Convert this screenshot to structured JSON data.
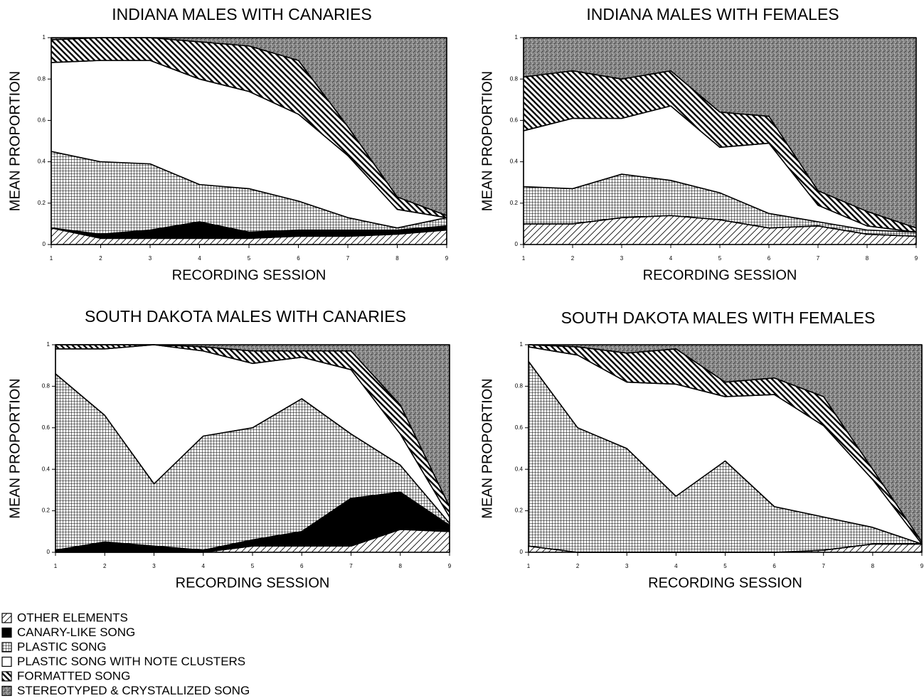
{
  "chart_data": [
    {
      "type": "stacked-area",
      "title": "INDIANA MALES WITH CANARIES",
      "xlabel": "RECORDING SESSION",
      "ylabel": "MEAN PROPORTION",
      "x": [
        1,
        2,
        3,
        4,
        5,
        6,
        7,
        8,
        9
      ],
      "xlim": [
        1,
        9
      ],
      "xticks": [
        1,
        2,
        3,
        4,
        5,
        6,
        7,
        8,
        9
      ],
      "ylim": [
        0,
        1
      ],
      "yticks": [
        0,
        0.2,
        0.4,
        0.6,
        0.8,
        1
      ],
      "series": [
        {
          "values": [
            0.08,
            0.03,
            0.03,
            0.03,
            0.03,
            0.04,
            0.04,
            0.05,
            0.07
          ]
        },
        {
          "values": [
            0,
            0.02,
            0.04,
            0.08,
            0.03,
            0.03,
            0.03,
            0.02,
            0.02
          ]
        },
        {
          "values": [
            0.37,
            0.35,
            0.32,
            0.18,
            0.21,
            0.14,
            0.06,
            0.01,
            0.04
          ]
        },
        {
          "values": [
            0.43,
            0.49,
            0.5,
            0.51,
            0.47,
            0.42,
            0.3,
            0.09,
            0
          ]
        },
        {
          "values": [
            0.11,
            0.11,
            0.11,
            0.18,
            0.22,
            0.26,
            0.14,
            0.06,
            0.01
          ]
        },
        {
          "values": [
            0.01,
            0,
            0,
            0.02,
            0.04,
            0.11,
            0.43,
            0.77,
            0.86
          ]
        }
      ]
    },
    {
      "type": "stacked-area",
      "title": "INDIANA MALES WITH FEMALES",
      "xlabel": "RECORDING SESSION",
      "ylabel": "MEAN PROPORTION",
      "x": [
        1,
        2,
        3,
        4,
        5,
        6,
        7,
        8,
        9
      ],
      "xlim": [
        1,
        9
      ],
      "xticks": [
        1,
        2,
        3,
        4,
        5,
        6,
        7,
        8,
        9
      ],
      "ylim": [
        0,
        1
      ],
      "yticks": [
        0,
        0.2,
        0.4,
        0.6,
        0.8,
        1
      ],
      "series": [
        {
          "values": [
            0.1,
            0.1,
            0.13,
            0.14,
            0.12,
            0.08,
            0.09,
            0.05,
            0.04
          ]
        },
        {
          "values": [
            0,
            0,
            0,
            0,
            0,
            0,
            0,
            0,
            0
          ]
        },
        {
          "values": [
            0.18,
            0.17,
            0.21,
            0.17,
            0.13,
            0.07,
            0.02,
            0.02,
            0.02
          ]
        },
        {
          "values": [
            0.27,
            0.34,
            0.27,
            0.36,
            0.22,
            0.34,
            0.08,
            0.02,
            0
          ]
        },
        {
          "values": [
            0.26,
            0.23,
            0.19,
            0.17,
            0.17,
            0.13,
            0.07,
            0.07,
            0.02
          ]
        },
        {
          "values": [
            0.19,
            0.16,
            0.2,
            0.16,
            0.36,
            0.38,
            0.74,
            0.84,
            0.92
          ]
        }
      ]
    },
    {
      "type": "stacked-area",
      "title": "SOUTH DAKOTA MALES WITH CANARIES",
      "xlabel": "RECORDING SESSION",
      "ylabel": "MEAN PROPORTION",
      "x": [
        1,
        2,
        3,
        4,
        5,
        6,
        7,
        8,
        9
      ],
      "xlim": [
        1,
        9
      ],
      "xticks": [
        1,
        2,
        3,
        4,
        5,
        6,
        7,
        8,
        9
      ],
      "ylim": [
        0,
        1
      ],
      "yticks": [
        0,
        0.2,
        0.4,
        0.6,
        0.8,
        1
      ],
      "series": [
        {
          "values": [
            0,
            0,
            0,
            0,
            0.03,
            0.03,
            0.03,
            0.11,
            0.1
          ]
        },
        {
          "values": [
            0.01,
            0.05,
            0.03,
            0.01,
            0.03,
            0.07,
            0.23,
            0.18,
            0.03
          ]
        },
        {
          "values": [
            0.85,
            0.61,
            0.3,
            0.55,
            0.54,
            0.64,
            0.31,
            0.13,
            0.01
          ]
        },
        {
          "values": [
            0.12,
            0.32,
            0.67,
            0.41,
            0.31,
            0.2,
            0.31,
            0.15,
            0.03
          ]
        },
        {
          "values": [
            0.02,
            0.02,
            0,
            0.02,
            0.06,
            0.03,
            0.09,
            0.14,
            0.05
          ]
        },
        {
          "values": [
            0,
            0,
            0,
            0.01,
            0.03,
            0.03,
            0.03,
            0.29,
            0.78
          ]
        }
      ]
    },
    {
      "type": "stacked-area",
      "title": "SOUTH DAKOTA MALES WITH FEMALES",
      "xlabel": "RECORDING SESSION",
      "ylabel": "MEAN PROPORTION",
      "x": [
        1,
        2,
        3,
        4,
        5,
        6,
        7,
        8,
        9
      ],
      "xlim": [
        1,
        9
      ],
      "xticks": [
        1,
        2,
        3,
        4,
        5,
        6,
        7,
        8,
        9
      ],
      "ylim": [
        0,
        1
      ],
      "yticks": [
        0,
        0.2,
        0.4,
        0.6,
        0.8,
        1
      ],
      "series": [
        {
          "values": [
            0.03,
            0,
            0,
            0,
            0,
            0,
            0.01,
            0.04,
            0.04
          ]
        },
        {
          "values": [
            0,
            0,
            0,
            0,
            0,
            0,
            0,
            0,
            0
          ]
        },
        {
          "values": [
            0.89,
            0.6,
            0.5,
            0.27,
            0.44,
            0.22,
            0.16,
            0.08,
            0
          ]
        },
        {
          "values": [
            0.07,
            0.35,
            0.32,
            0.54,
            0.31,
            0.54,
            0.44,
            0.23,
            0
          ]
        },
        {
          "values": [
            0.01,
            0.04,
            0.14,
            0.17,
            0.07,
            0.08,
            0.14,
            0.05,
            0.01
          ]
        },
        {
          "values": [
            0,
            0.01,
            0.04,
            0.02,
            0.18,
            0.16,
            0.25,
            0.6,
            0.95
          ]
        }
      ]
    }
  ],
  "legend": [
    {
      "label": "OTHER ELEMENTS",
      "pattern": "diagonal"
    },
    {
      "label": "CANARY-LIKE SONG",
      "pattern": "solid"
    },
    {
      "label": "PLASTIC SONG",
      "pattern": "grid"
    },
    {
      "label": "PLASTIC SONG WITH NOTE CLUSTERS",
      "pattern": "none"
    },
    {
      "label": "FORMATTED SONG",
      "pattern": "backslash"
    },
    {
      "label": "STEREOTYPED & CRYSTALLIZED SONG",
      "pattern": "stipple"
    }
  ]
}
